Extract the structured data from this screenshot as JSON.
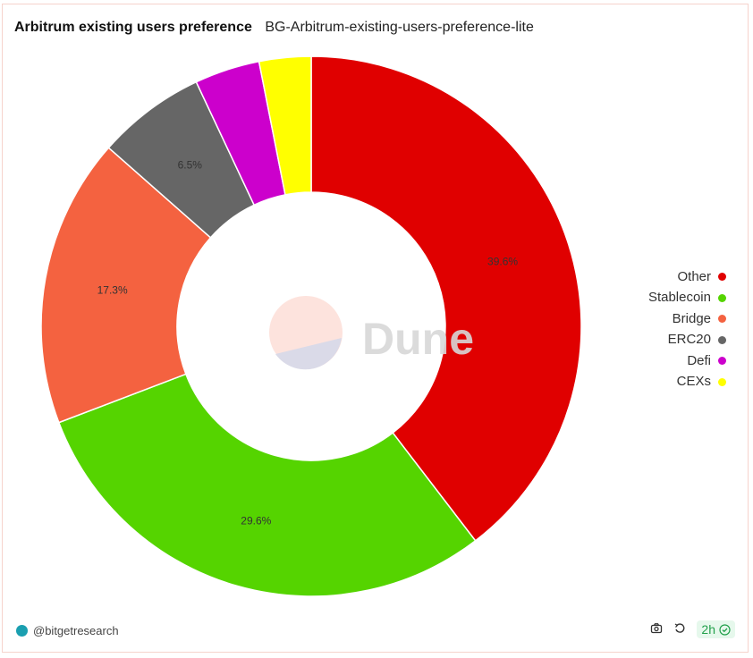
{
  "header": {
    "title": "Arbitrum existing users preference",
    "subtitle": "BG-Arbitrum-existing-users-preference-lite"
  },
  "watermark": "Dune",
  "chart_data": {
    "type": "pie",
    "variant": "donut",
    "title": "Arbitrum existing users preference",
    "categories": [
      "Other",
      "Stablecoin",
      "Bridge",
      "ERC20",
      "Defi",
      "CEXs"
    ],
    "values": [
      39.6,
      29.6,
      17.3,
      6.5,
      3.9,
      3.1
    ],
    "labels": [
      "39.6%",
      "29.6%",
      "17.3%",
      "6.5%",
      "",
      ""
    ],
    "colors": [
      "#e00000",
      "#55d400",
      "#f46240",
      "#666666",
      "#cc00cc",
      "#ffff00"
    ],
    "legend_position": "right"
  },
  "footer": {
    "author": "@bitgetresearch",
    "refresh_badge": "2h"
  },
  "icons": {
    "camera": "camera-icon",
    "refresh": "refresh-icon",
    "check": "check-circle-icon"
  }
}
